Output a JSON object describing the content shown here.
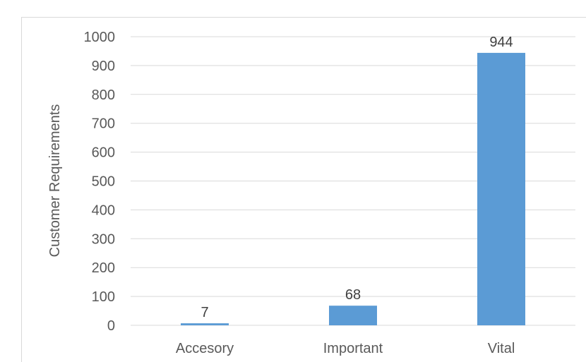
{
  "chart_data": {
    "type": "bar",
    "categories": [
      "Accesory",
      "Important",
      "Vital"
    ],
    "values": [
      7,
      68,
      944
    ],
    "data_labels": [
      "7",
      "68",
      "944"
    ],
    "title": "",
    "xlabel": "",
    "ylabel": "Customer Requirements",
    "ylim": [
      0,
      1000
    ],
    "yticks": [
      0,
      100,
      200,
      300,
      400,
      500,
      600,
      700,
      800,
      900,
      1000
    ],
    "grid": true,
    "legend": "none",
    "colors": {
      "bar": "#5b9bd5",
      "grid": "#d9d9d9",
      "text": "#595959"
    }
  }
}
